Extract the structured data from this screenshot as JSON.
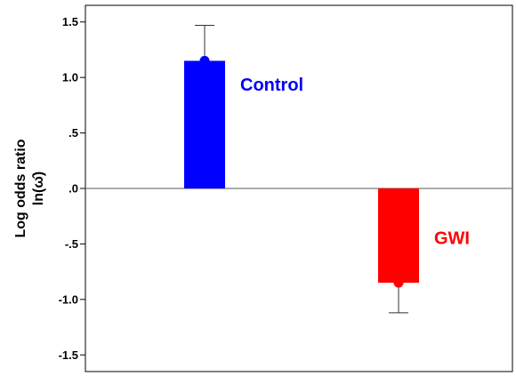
{
  "chart_data": {
    "type": "bar",
    "title": "",
    "xlabel": "",
    "ylabel": "Log odds ratio",
    "ylabel_line2": "ln(ω̂)",
    "ylim": [
      -1.65,
      1.65
    ],
    "yticks": [
      1.5,
      1.0,
      0.5,
      0.0,
      -0.5,
      -1.0,
      -1.5
    ],
    "ytick_labels": [
      "1.5",
      "1.0",
      ".5",
      ".0",
      "-.5",
      "-1.0",
      "-1.5"
    ],
    "grid": false,
    "categories": [
      "Control",
      "GWI"
    ],
    "values": [
      1.15,
      -0.85
    ],
    "error_ends": [
      1.47,
      -1.12
    ],
    "point_markers": [
      1.15,
      -0.85
    ],
    "colors": [
      "#0000ff",
      "#ff0000"
    ],
    "labels": [
      {
        "text": "Control",
        "color": "#0000ff"
      },
      {
        "text": "GWI",
        "color": "#ff0000"
      }
    ]
  }
}
